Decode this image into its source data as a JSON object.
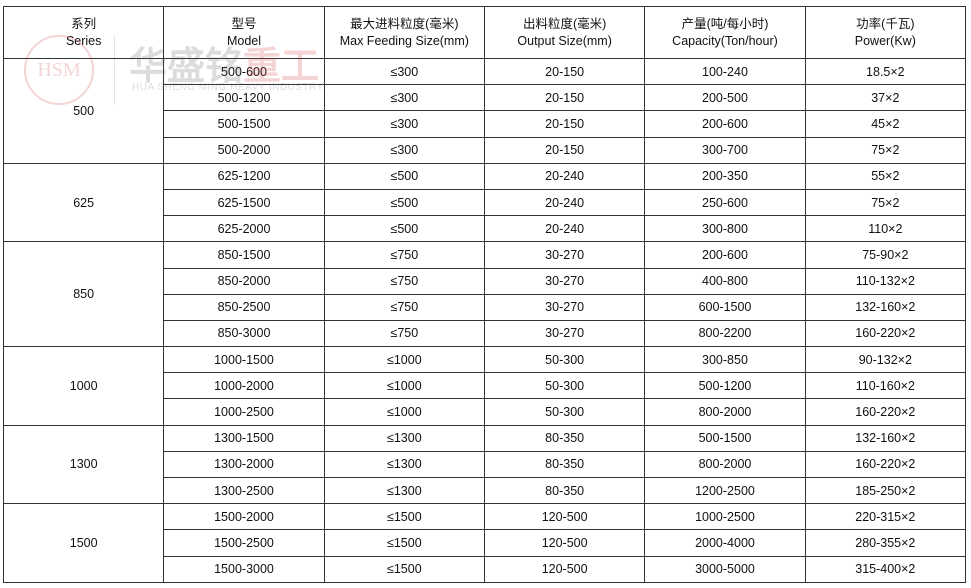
{
  "watermark": {
    "logo": "HSM",
    "cn_gray": "华盛铭",
    "cn_red": "重工",
    "en": "HUA SHENG MING HEAVY INDUSTRY"
  },
  "headers": [
    {
      "cn": "系列",
      "en": "Series"
    },
    {
      "cn": "型号",
      "en": "Model"
    },
    {
      "cn": "最大进料粒度(毫米)",
      "en": "Max Feeding Size(mm)"
    },
    {
      "cn": "出料粒度(毫米)",
      "en": "Output Size(mm)"
    },
    {
      "cn": "产量(吨/每小时)",
      "en": "Capacity(Ton/hour)"
    },
    {
      "cn": "功率(千瓦)",
      "en": "Power(Kw)"
    }
  ],
  "groups": [
    {
      "series": "500",
      "rows": [
        [
          "500-600",
          "≤300",
          "20-150",
          "100-240",
          "18.5×2"
        ],
        [
          "500-1200",
          "≤300",
          "20-150",
          "200-500",
          "37×2"
        ],
        [
          "500-1500",
          "≤300",
          "20-150",
          "200-600",
          "45×2"
        ],
        [
          "500-2000",
          "≤300",
          "20-150",
          "300-700",
          "75×2"
        ]
      ]
    },
    {
      "series": "625",
      "rows": [
        [
          "625-1200",
          "≤500",
          "20-240",
          "200-350",
          "55×2"
        ],
        [
          "625-1500",
          "≤500",
          "20-240",
          "250-600",
          "75×2"
        ],
        [
          "625-2000",
          "≤500",
          "20-240",
          "300-800",
          "110×2"
        ]
      ]
    },
    {
      "series": "850",
      "rows": [
        [
          "850-1500",
          "≤750",
          "30-270",
          "200-600",
          "75-90×2"
        ],
        [
          "850-2000",
          "≤750",
          "30-270",
          "400-800",
          "110-132×2"
        ],
        [
          "850-2500",
          "≤750",
          "30-270",
          "600-1500",
          "132-160×2"
        ],
        [
          "850-3000",
          "≤750",
          "30-270",
          "800-2200",
          "160-220×2"
        ]
      ]
    },
    {
      "series": "1000",
      "rows": [
        [
          "1000-1500",
          "≤1000",
          "50-300",
          "300-850",
          "90-132×2"
        ],
        [
          "1000-2000",
          "≤1000",
          "50-300",
          "500-1200",
          "110-160×2"
        ],
        [
          "1000-2500",
          "≤1000",
          "50-300",
          "800-2000",
          "160-220×2"
        ]
      ]
    },
    {
      "series": "1300",
      "rows": [
        [
          "1300-1500",
          "≤1300",
          "80-350",
          "500-1500",
          "132-160×2"
        ],
        [
          "1300-2000",
          "≤1300",
          "80-350",
          "800-2000",
          "160-220×2"
        ],
        [
          "1300-2500",
          "≤1300",
          "80-350",
          "1200-2500",
          "185-250×2"
        ]
      ]
    },
    {
      "series": "1500",
      "rows": [
        [
          "1500-2000",
          "≤1500",
          "120-500",
          "1000-2500",
          "220-315×2"
        ],
        [
          "1500-2500",
          "≤1500",
          "120-500",
          "2000-4000",
          "280-355×2"
        ],
        [
          "1500-3000",
          "≤1500",
          "120-500",
          "3000-5000",
          "315-400×2"
        ]
      ]
    }
  ]
}
